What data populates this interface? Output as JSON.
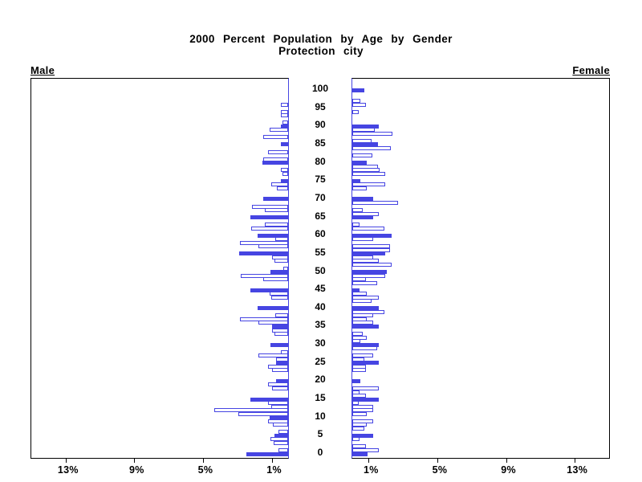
{
  "title": {
    "line1": "2000 Percent Population by Age by Gender",
    "line2": "Protection city"
  },
  "panels": {
    "left_label": "Male",
    "right_label": "Female"
  },
  "colors": {
    "bar_blue": "#4645E2",
    "axis_black": "#000000",
    "background": "#FFFFFF"
  },
  "chart_data": {
    "type": "bar",
    "subtype": "population-pyramid",
    "title": "2000 Percent Population by Age by Gender",
    "subtitle": "Protection city",
    "orientation": "horizontal, male bars extend left, female bars extend right",
    "fill_rule": "bars at ages divisible by 5 are solid blue; other ages are white with blue outline",
    "age_axis": {
      "min": 0,
      "max": 100,
      "tick_step": 5,
      "tick_labels": [
        "0",
        "5",
        "10",
        "15",
        "20",
        "25",
        "30",
        "35",
        "40",
        "45",
        "50",
        "55",
        "60",
        "65",
        "70",
        "75",
        "80",
        "85",
        "90",
        "95",
        "100"
      ]
    },
    "pct_axis": {
      "min": 0,
      "max": 15,
      "tick_values": [
        1,
        5,
        9,
        13
      ],
      "tick_labels": [
        "1%",
        "5%",
        "9%",
        "13%"
      ],
      "unit": "percent of population"
    },
    "series": [
      {
        "name": "Male",
        "ages": "index equals age 0 through 100",
        "values": [
          2.45,
          0.55,
          0,
          0.85,
          1.05,
          0.8,
          0.55,
          0,
          0.9,
          1.15,
          1.1,
          2.9,
          4.3,
          1.0,
          1.15,
          2.2,
          0,
          0,
          0.95,
          1.15,
          0.7,
          0,
          0,
          0.95,
          1.15,
          0.7,
          0.7,
          1.75,
          0.4,
          0,
          1.05,
          0,
          0,
          0.8,
          0.95,
          0.95,
          1.75,
          2.8,
          0.75,
          0,
          1.8,
          0,
          0,
          1.0,
          1.1,
          2.2,
          0,
          0,
          1.45,
          2.75,
          1.05,
          0.3,
          0,
          0.8,
          0.95,
          2.85,
          0,
          1.75,
          2.8,
          0.75,
          1.8,
          0,
          2.15,
          1.35,
          0,
          2.2,
          0,
          1.35,
          2.1,
          0,
          1.45,
          0,
          0,
          0.65,
          1.0,
          0.4,
          0,
          0.35,
          0.4,
          0,
          1.5,
          1.45,
          0,
          1.15,
          0,
          0.4,
          0,
          1.45,
          0,
          1.1,
          0.4,
          0.35,
          0,
          0.4,
          0.4,
          0,
          0.4,
          0,
          0,
          0,
          0
        ]
      },
      {
        "name": "Female",
        "ages": "index equals age 0 through 100",
        "values": [
          0.9,
          1.55,
          0.8,
          0,
          0.4,
          1.2,
          0,
          0.7,
          0.85,
          1.2,
          0,
          0.85,
          1.2,
          1.2,
          0.35,
          1.55,
          0.8,
          0.4,
          1.55,
          0,
          0.45,
          0,
          0,
          0.8,
          0.8,
          1.55,
          0.7,
          1.2,
          0,
          1.45,
          1.55,
          0.45,
          0.85,
          0.6,
          0,
          1.55,
          1.2,
          0.85,
          1.2,
          1.85,
          1.55,
          0,
          1.1,
          1.55,
          0.85,
          0.4,
          0,
          1.45,
          0.8,
          1.9,
          2.0,
          0,
          2.3,
          1.55,
          1.2,
          1.9,
          2.2,
          2.2,
          0,
          1.2,
          2.3,
          0,
          1.85,
          0.4,
          0,
          1.2,
          1.55,
          0.6,
          0,
          2.65,
          1.2,
          0,
          0,
          0.85,
          1.9,
          0.45,
          0,
          1.9,
          1.6,
          1.5,
          0.85,
          0,
          1.15,
          0,
          2.25,
          1.5,
          1.1,
          0,
          2.35,
          1.3,
          1.55,
          0,
          0,
          0,
          0.35,
          0,
          0.8,
          0.45,
          0,
          0,
          0.7
        ]
      }
    ]
  }
}
